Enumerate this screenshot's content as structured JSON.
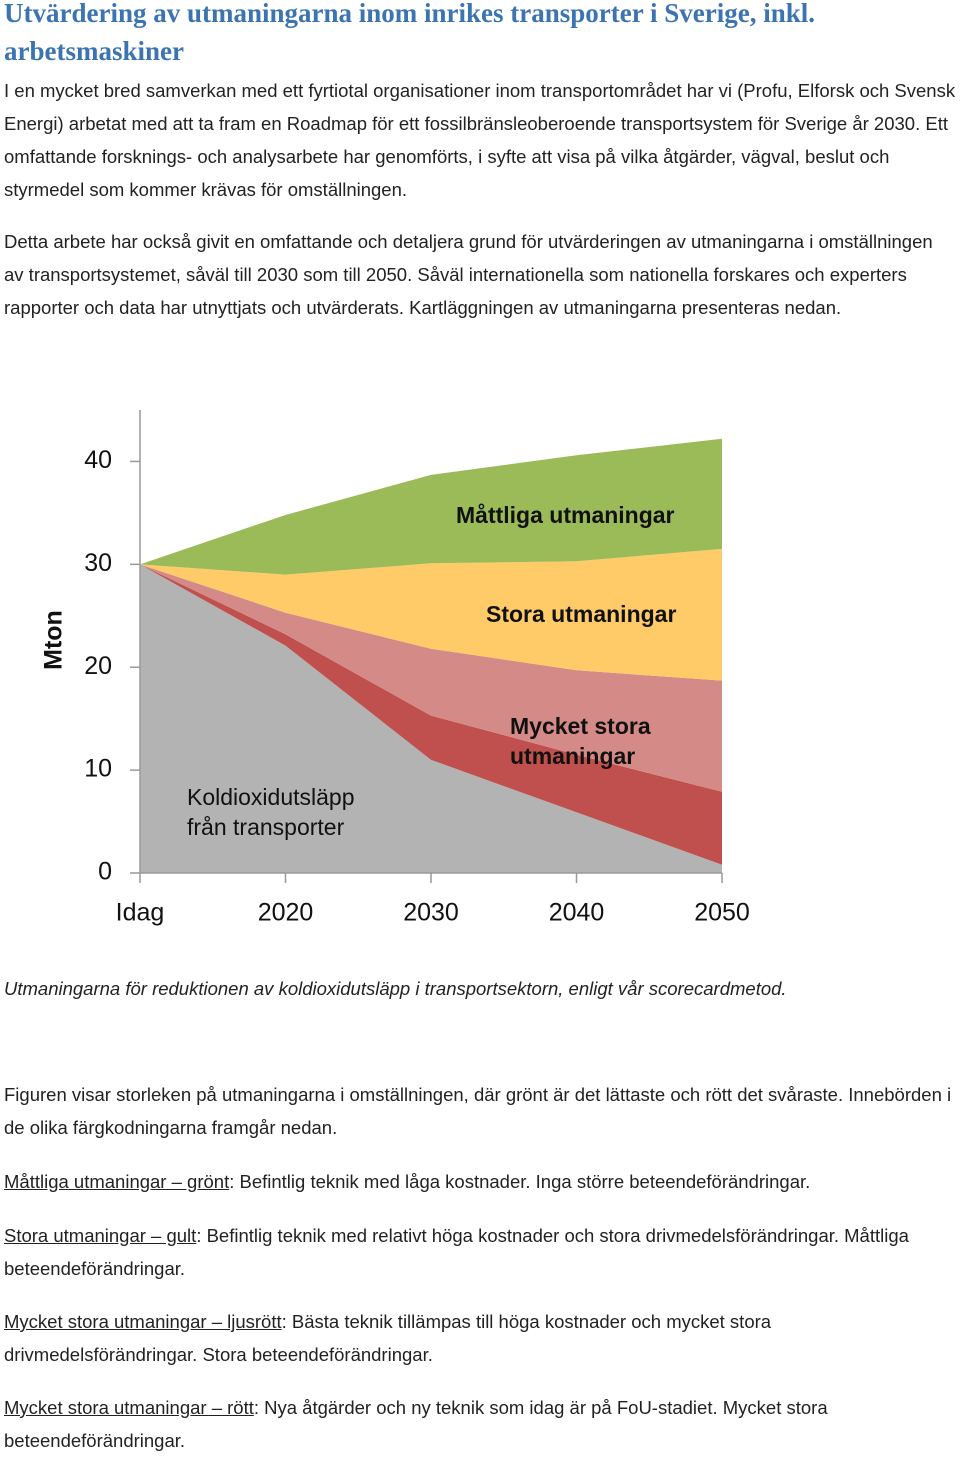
{
  "title": "Utvärdering av utmaningarna inom inrikes transporter i Sverige, inkl. arbetsmaskiner",
  "paragraphs": [
    "I en mycket bred samverkan med ett fyrtiotal organisationer inom transportområdet har vi (Profu, Elforsk och Svensk Energi) arbetat med att ta fram en Roadmap för ett fossilbränsleoberoende transportsystem för Sverige år 2030. Ett omfattande forsknings- och analysarbete har genomförts, i syfte att visa på vilka åtgärder, vägval, beslut och styrmedel som kommer krävas för omställningen.",
    "Detta arbete har också givit en omfattande och detaljera grund för utvärderingen av utmaningarna i omställningen av transportsystemet, såväl till 2030 som till 2050. Såväl internationella som nationella forskares och experters rapporter och data har utnyttjats och utvärderats. Kartläggningen av utmaningarna presenteras nedan."
  ],
  "chart_data": {
    "type": "stacked-area",
    "y_label": "Mton",
    "categories": [
      "Idag",
      "2020",
      "2030",
      "2040",
      "2050"
    ],
    "ylim": [
      0,
      45
    ],
    "yticks": [
      0,
      10,
      20,
      30,
      40
    ],
    "grid": false,
    "series": [
      {
        "name": "Koldioxidutsläpp från transporter",
        "color": "#b3b3b3",
        "values": [
          30,
          22.1,
          11.0,
          5.9,
          0.8
        ]
      },
      {
        "color": "#c0504d",
        "values": [
          0,
          1.1,
          4.3,
          5.6,
          7.1
        ]
      },
      {
        "name": "Mycket stora utmaningar",
        "color": "#d48a87",
        "values": [
          0,
          2.1,
          6.5,
          8.2,
          10.8
        ]
      },
      {
        "name": "Stora utmaningar",
        "color": "#fecb68",
        "values": [
          0,
          3.7,
          8.3,
          10.6,
          12.8
        ]
      },
      {
        "name": "Måttliga utmaningar",
        "color": "#9bbb59",
        "values": [
          0,
          5.8,
          8.6,
          10.3,
          10.7
        ]
      }
    ]
  },
  "caption": "Utmaningarna för reduktionen av koldioxidutsläpp i transportsektorn, enligt vår scorecardmetod.",
  "intro": "Figuren visar storleken på utmaningarna i omställningen, där grönt är det lättaste och rött det svåraste. Innebörden i de olika färgkodningarna framgår nedan.",
  "definitions": [
    {
      "term": "Måttliga utmaningar – grönt",
      "text": ": Befintlig teknik med låga kostnader. Inga större beteendeförändringar."
    },
    {
      "term": "Stora utmaningar – gult",
      "text": ": Befintlig teknik med relativt höga kostnader och stora drivmedelsförändringar. Måttliga beteendeförändringar."
    },
    {
      "term": "Mycket stora utmaningar – ljusrött",
      "text": ": Bästa teknik tillämpas till höga kostnader och mycket stora drivmedelsförändringar. Stora beteendeförändringar."
    },
    {
      "term": "Mycket stora utmaningar – rött",
      "text": ": Nya åtgärder och ny teknik som idag är på FoU-stadiet. Mycket stora beteendeförändringar."
    }
  ]
}
